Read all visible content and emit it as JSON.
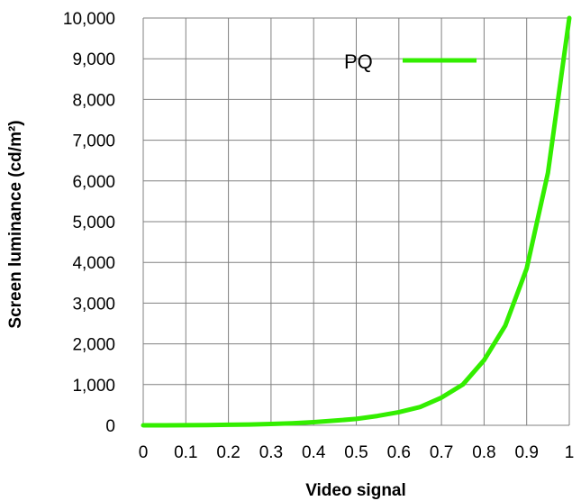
{
  "chart_data": {
    "type": "line",
    "xlabel": "Video signal",
    "ylabel": "Screen luminance (cd/m²)",
    "xlim": [
      0,
      1
    ],
    "ylim": [
      0,
      10000
    ],
    "x_ticks": [
      "0",
      "0.1",
      "0.2",
      "0.3",
      "0.4",
      "0.5",
      "0.6",
      "0.7",
      "0.8",
      "0.9",
      "1"
    ],
    "y_ticks": [
      "0",
      "1,000",
      "2,000",
      "3,000",
      "4,000",
      "5,000",
      "6,000",
      "7,000",
      "8,000",
      "9,000",
      "10,000"
    ],
    "grid": true,
    "legend_position": "top-right",
    "series": [
      {
        "name": "PQ",
        "color": "#33ee00",
        "x": [
          0,
          0.05,
          0.1,
          0.15,
          0.2,
          0.25,
          0.3,
          0.35,
          0.4,
          0.45,
          0.5,
          0.55,
          0.6,
          0.65,
          0.7,
          0.75,
          0.8,
          0.85,
          0.9,
          0.95,
          1
        ],
        "y": [
          0,
          0.6,
          3,
          7,
          13,
          21,
          33,
          51,
          77,
          115,
          157,
          230,
          322,
          450,
          680,
          1000,
          1600,
          2450,
          3850,
          6200,
          10000
        ]
      }
    ]
  }
}
